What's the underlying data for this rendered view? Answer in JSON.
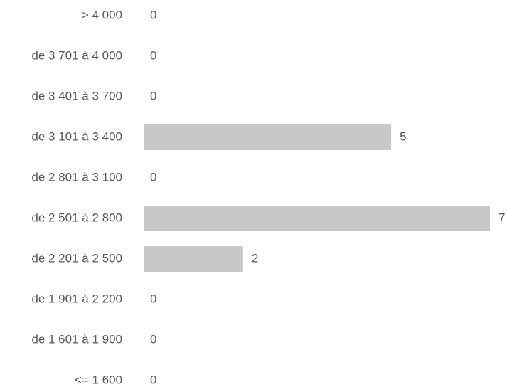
{
  "chart_data": {
    "type": "bar",
    "categories": [
      "> 4 000",
      "de 3 701 à 4 000",
      "de 3 401 à 3 700",
      "de 3 101 à 3 400",
      "de 2 801 à 3 100",
      "de 2 501 à 2 800",
      "de 2 201 à 2 500",
      "de 1 901 à 2 200",
      "de 1 601 à 1 900",
      "<= 1 600"
    ],
    "values": [
      0,
      0,
      0,
      5,
      0,
      7,
      2,
      0,
      0,
      0
    ],
    "color": "#c8c8c8"
  }
}
